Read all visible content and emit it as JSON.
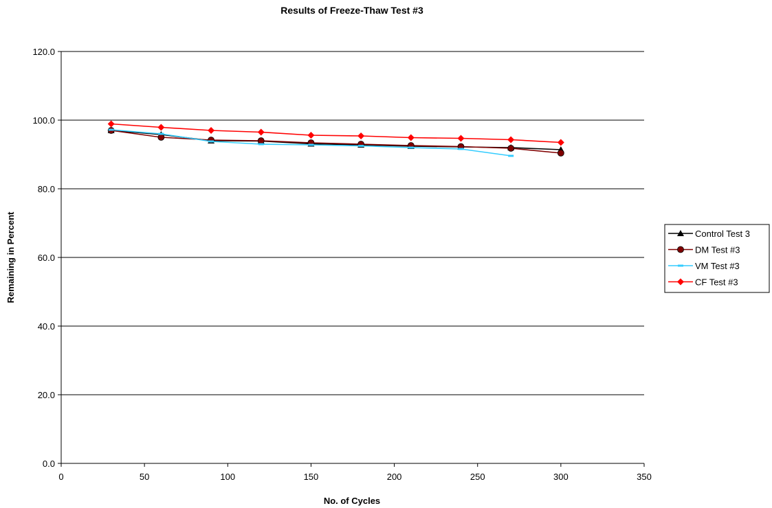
{
  "chart_data": {
    "type": "line",
    "title": "Results of Freeze-Thaw Test #3",
    "xlabel": "No. of Cycles",
    "ylabel": "Remaining in Percent",
    "xlim": [
      0,
      350
    ],
    "ylim": [
      0,
      120
    ],
    "xticks": [
      "0",
      "50",
      "100",
      "150",
      "200",
      "250",
      "300",
      "350"
    ],
    "yticks": [
      "0.0",
      "20.0",
      "40.0",
      "60.0",
      "80.0",
      "100.0",
      "120.0"
    ],
    "grid": "horizontal",
    "legend_position": "right",
    "series": [
      {
        "name": "Control Test 3",
        "color": "#000000",
        "marker": "triangle",
        "x": [
          30,
          60,
          90,
          120,
          150,
          180,
          210,
          240,
          270,
          300
        ],
        "y": [
          97.0,
          95.8,
          94.0,
          93.9,
          93.1,
          92.8,
          92.4,
          92.2,
          92.0,
          91.4
        ]
      },
      {
        "name": "DM Test #3",
        "color": "#800000",
        "marker": "circle",
        "x": [
          30,
          60,
          90,
          120,
          150,
          180,
          210,
          240,
          270,
          300
        ],
        "y": [
          97.0,
          95.0,
          94.2,
          94.0,
          93.4,
          93.0,
          92.6,
          92.3,
          91.8,
          90.4
        ]
      },
      {
        "name": "VM Test #3",
        "color": "#33CCFF",
        "marker": "dash",
        "x": [
          30,
          60,
          90,
          120,
          150,
          180,
          210,
          240,
          270
        ],
        "y": [
          97.2,
          96.0,
          93.8,
          93.0,
          92.8,
          92.5,
          92.0,
          91.6,
          89.6
        ]
      },
      {
        "name": "CF Test #3",
        "color": "#FF0000",
        "marker": "diamond",
        "x": [
          30,
          60,
          90,
          120,
          150,
          180,
          210,
          240,
          270,
          300
        ],
        "y": [
          98.9,
          97.9,
          97.0,
          96.5,
          95.6,
          95.4,
          94.9,
          94.7,
          94.3,
          93.5
        ]
      }
    ]
  }
}
